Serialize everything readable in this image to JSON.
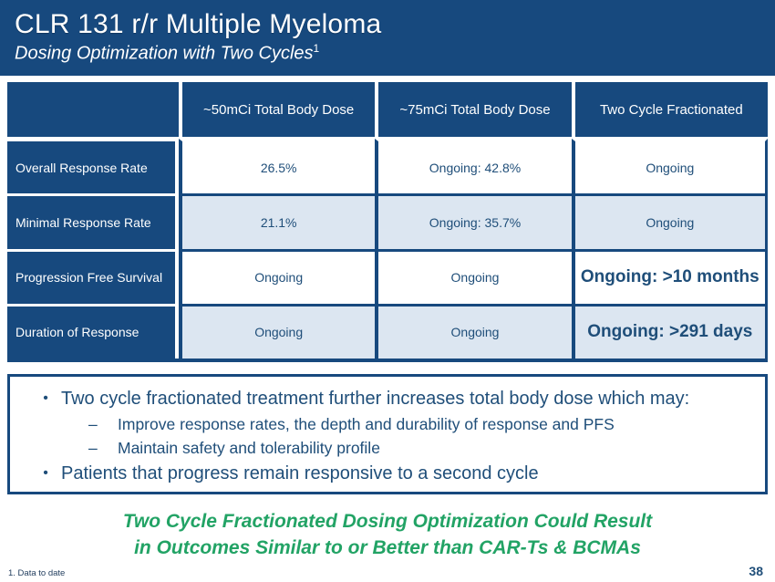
{
  "slide": {
    "title": "CLR 131 r/r Multiple Myeloma",
    "subtitle": "Dosing Optimization with Two Cycles",
    "subtitle_superscript": "1"
  },
  "table": {
    "column_headers": {
      "col1": "",
      "col2": "~50mCi Total Body Dose",
      "col3": "~75mCi Total Body Dose",
      "col4": "Two Cycle Fractionated"
    },
    "rows": [
      {
        "label": "Overall Response Rate",
        "values": [
          "26.5%",
          "Ongoing: 42.8%",
          "Ongoing"
        ]
      },
      {
        "label": "Minimal Response Rate",
        "values": [
          "21.1%",
          "Ongoing: 35.7%",
          "Ongoing"
        ]
      },
      {
        "label": "Progression Free Survival",
        "values": [
          "Ongoing",
          "Ongoing",
          "Ongoing: >10 months"
        ]
      },
      {
        "label": "Duration of Response",
        "values": [
          "Ongoing",
          "Ongoing",
          "Ongoing: >291 days"
        ]
      }
    ]
  },
  "callout": {
    "bullets": [
      {
        "marker": "•",
        "level": 1,
        "text": "Two cycle fractionated treatment further increases total body dose which may:"
      },
      {
        "marker": "–",
        "level": 2,
        "text": "Improve response rates, the depth and durability of response and PFS"
      },
      {
        "marker": "–",
        "level": 2,
        "text": "Maintain safety and tolerability profile"
      },
      {
        "marker": "•",
        "level": 1,
        "text": "Patients that progress remain responsive to a second cycle"
      }
    ]
  },
  "takeaway": {
    "line1": "Two Cycle Fractionated Dosing Optimization Could Result",
    "line2": "in Outcomes Similar to or Better than CAR-Ts & BCMAs"
  },
  "footer": {
    "footnote": "1. Data to date",
    "page_number": "38"
  },
  "colors": {
    "navy": "#17497E",
    "navy_text": "#1F4E79",
    "light_row_background": "#DCE6F1",
    "takeaway_green": "#22A365"
  }
}
